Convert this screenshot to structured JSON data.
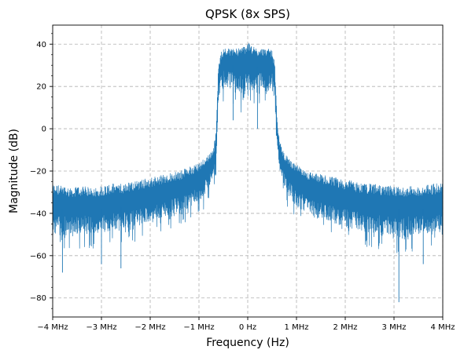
{
  "chart_data": {
    "type": "line",
    "title": "QPSK (8x SPS)",
    "xlabel": "Frequency (Hz)",
    "ylabel": "Magnitude (dB)",
    "xlim": [
      -4,
      4
    ],
    "ylim": [
      -89,
      49
    ],
    "x_unit": "MHz",
    "x_ticks": [
      -4,
      -3,
      -2,
      -1,
      0,
      1,
      2,
      3,
      4
    ],
    "x_tick_labels": [
      "−4 MHz",
      "−3 MHz",
      "−2 MHz",
      "−1 MHz",
      "0 Hz",
      "1 MHz",
      "2 MHz",
      "3 MHz",
      "4 MHz"
    ],
    "y_ticks": [
      -80,
      -60,
      -40,
      -20,
      0,
      20,
      40
    ],
    "y_tick_labels": [
      "−80",
      "−60",
      "−40",
      "−20",
      "0",
      "20",
      "40"
    ],
    "grid": true,
    "line_color": "#1f77b4",
    "series": [
      {
        "x": [
          -4.0,
          -3.8,
          -3.6,
          -3.4,
          -3.2,
          -3.0,
          -2.8,
          -2.6,
          -2.4,
          -2.2,
          -2.0,
          -1.8,
          -1.6,
          -1.4,
          -1.2,
          -1.0,
          -0.9,
          -0.8,
          -0.7,
          -0.65,
          -0.6,
          -0.55,
          -0.5,
          -0.4,
          -0.3,
          -0.2,
          -0.1,
          0.0,
          0.1,
          0.2,
          0.3,
          0.4,
          0.5,
          0.55,
          0.6,
          0.65,
          0.7,
          0.8,
          0.9,
          1.0,
          1.2,
          1.4,
          1.6,
          1.8,
          2.0,
          2.2,
          2.4,
          2.6,
          2.8,
          3.0,
          3.2,
          3.4,
          3.6,
          3.8,
          4.0
        ],
        "y_high": [
          -26,
          -27,
          -28,
          -27,
          -28,
          -27,
          -26,
          -26,
          -25,
          -24,
          -23,
          -22,
          -21,
          -20,
          -18,
          -16,
          -14,
          -12,
          -9,
          0,
          30,
          36,
          38,
          38,
          38,
          38,
          39,
          41,
          39,
          38,
          38,
          38,
          37,
          33,
          5,
          -5,
          -9,
          -13,
          -15,
          -17,
          -20,
          -21,
          -22,
          -23,
          -24,
          -25,
          -26,
          -26,
          -27,
          -27,
          -28,
          -27,
          -27,
          -26,
          -25
        ],
        "y_mid": [
          -38,
          -38,
          -38,
          -38,
          -38,
          -38,
          -37,
          -37,
          -36,
          -35,
          -34,
          -33,
          -31,
          -30,
          -28,
          -25,
          -23,
          -20,
          -18,
          -10,
          22,
          28,
          30,
          30,
          30,
          29,
          29,
          30,
          29,
          29,
          30,
          30,
          29,
          24,
          0,
          -13,
          -17,
          -21,
          -24,
          -27,
          -29,
          -31,
          -33,
          -34,
          -35,
          -36,
          -37,
          -37,
          -38,
          -38,
          -38,
          -38,
          -38,
          -38,
          -38
        ],
        "y_low": [
          -58,
          -62,
          -56,
          -58,
          -57,
          -57,
          -55,
          -55,
          -54,
          -53,
          -50,
          -50,
          -48,
          -45,
          -44,
          -42,
          -38,
          -33,
          -26,
          -30,
          10,
          12,
          13,
          12,
          10,
          11,
          0,
          12,
          11,
          10,
          12,
          13,
          11,
          8,
          -10,
          -22,
          -30,
          -37,
          -40,
          -43,
          -48,
          -50,
          -51,
          -52,
          -55,
          -55,
          -56,
          -58,
          -60,
          -58,
          -62,
          -58,
          -57,
          -56,
          -55
        ],
        "spikes": [
          {
            "x": -3.8,
            "y": -68
          },
          {
            "x": -3.0,
            "y": -64
          },
          {
            "x": -2.6,
            "y": -66
          },
          {
            "x": -0.3,
            "y": 4
          },
          {
            "x": 0.2,
            "y": 0
          },
          {
            "x": 3.1,
            "y": -82
          },
          {
            "x": 3.6,
            "y": -64
          }
        ]
      }
    ]
  }
}
